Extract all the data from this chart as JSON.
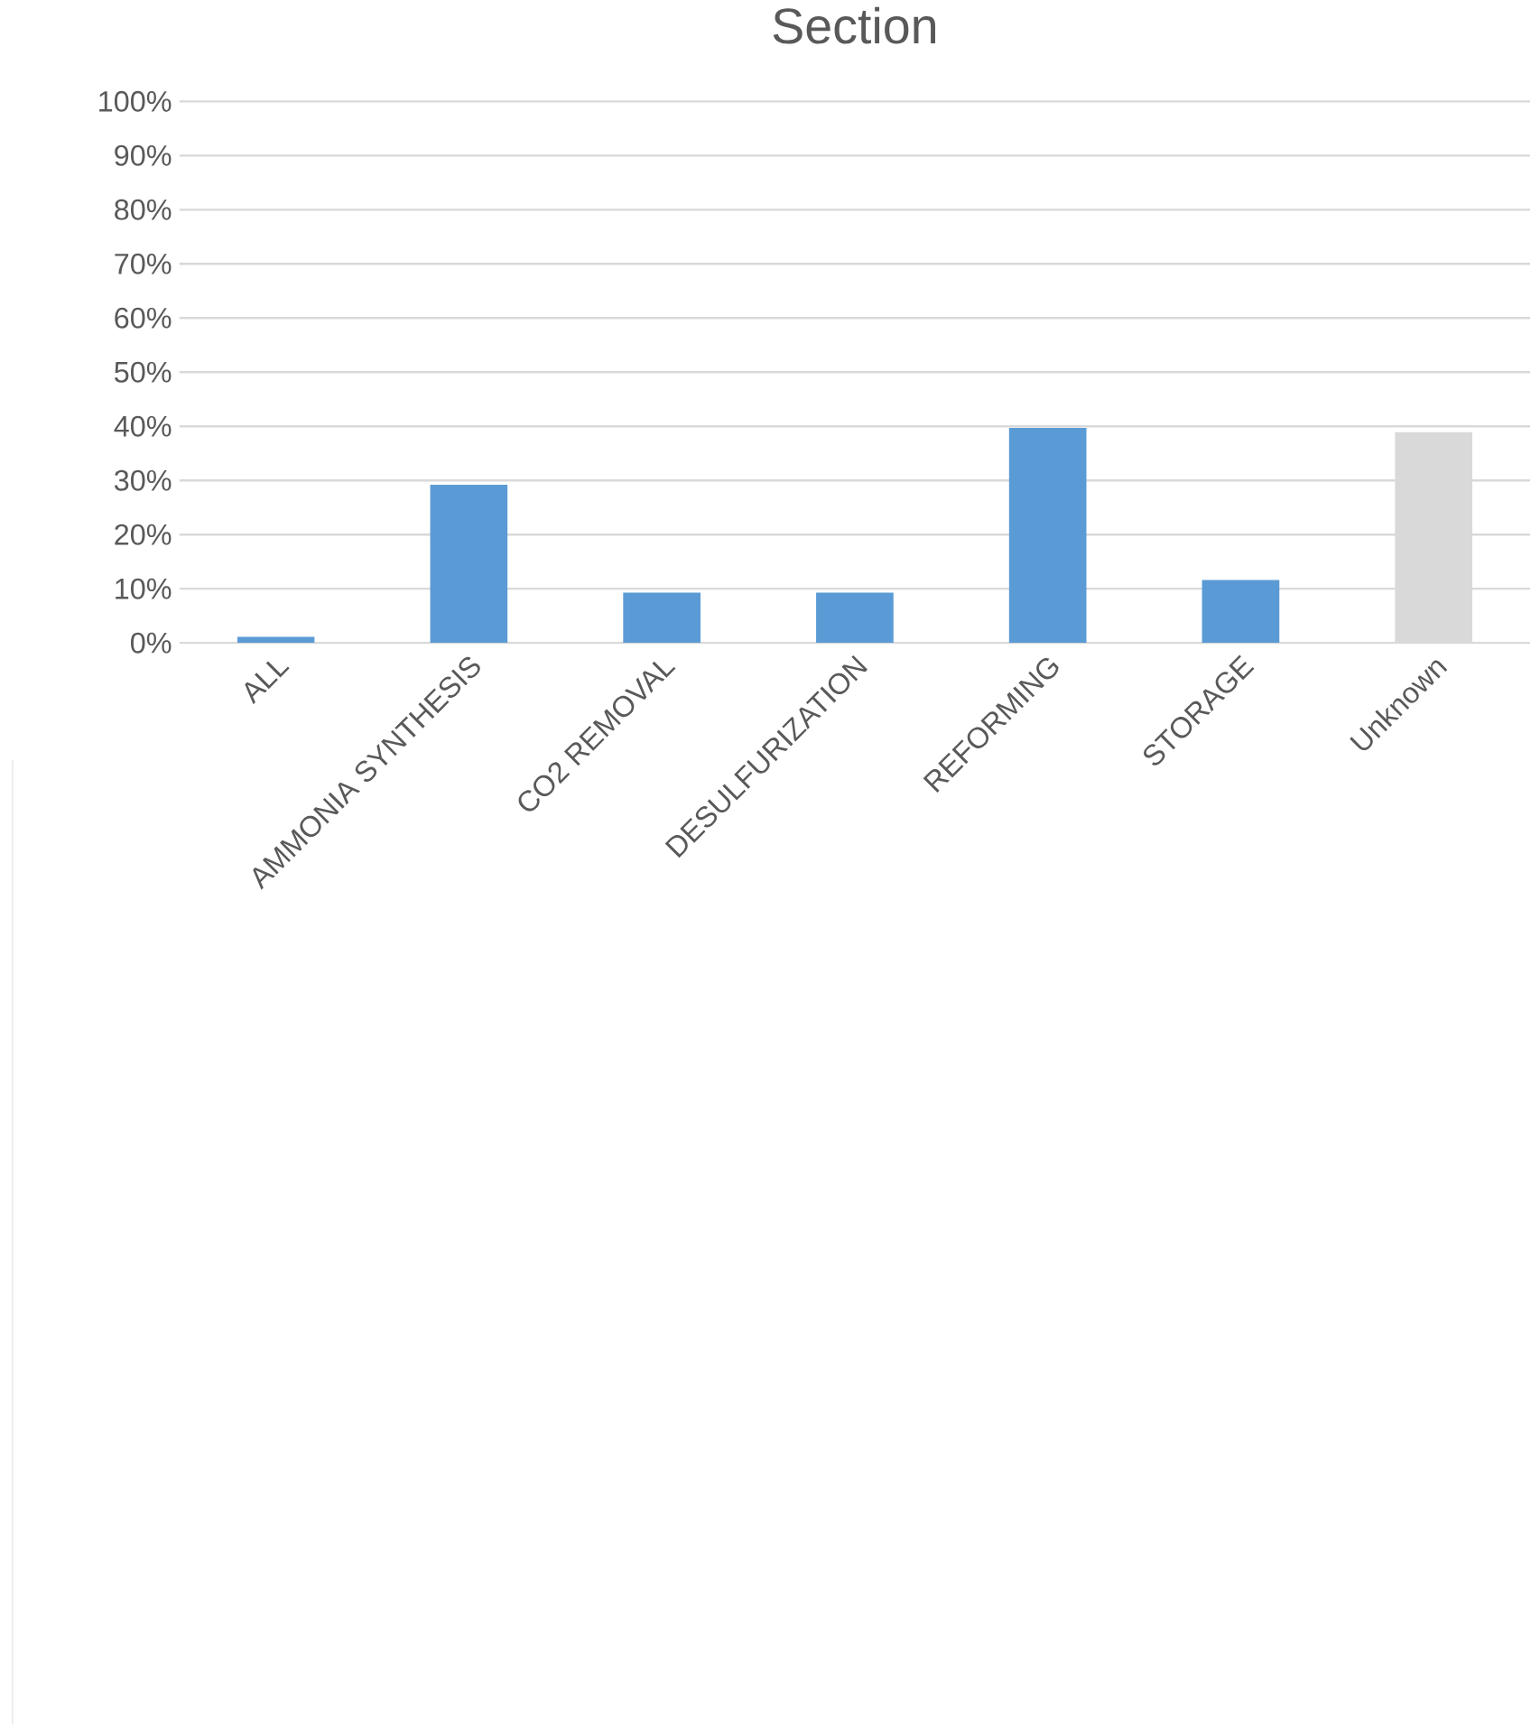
{
  "chart_data": {
    "type": "bar",
    "title": "Section",
    "categories": [
      "ALL",
      "AMMONIA SYNTHESIS",
      "CO2 REMOVAL",
      "DESULFURIZATION",
      "REFORMING",
      "STORAGE",
      "Unknown"
    ],
    "values": [
      1.1,
      29.2,
      9.3,
      9.3,
      39.7,
      11.6,
      38.9
    ],
    "colors": [
      "#5b9bd5",
      "#5b9bd5",
      "#5b9bd5",
      "#5b9bd5",
      "#5b9bd5",
      "#5b9bd5",
      "#d9d9d9"
    ],
    "ylim": [
      0,
      100
    ],
    "yticks": [
      {
        "value": 0,
        "label": "0%"
      },
      {
        "value": 10,
        "label": "10%"
      },
      {
        "value": 20,
        "label": "20%"
      },
      {
        "value": 30,
        "label": "30%"
      },
      {
        "value": 40,
        "label": "40%"
      },
      {
        "value": 50,
        "label": "50%"
      },
      {
        "value": 60,
        "label": "60%"
      },
      {
        "value": 70,
        "label": "70%"
      },
      {
        "value": 80,
        "label": "80%"
      },
      {
        "value": 90,
        "label": "90%"
      },
      {
        "value": 100,
        "label": "100%"
      }
    ],
    "grid": "y"
  }
}
